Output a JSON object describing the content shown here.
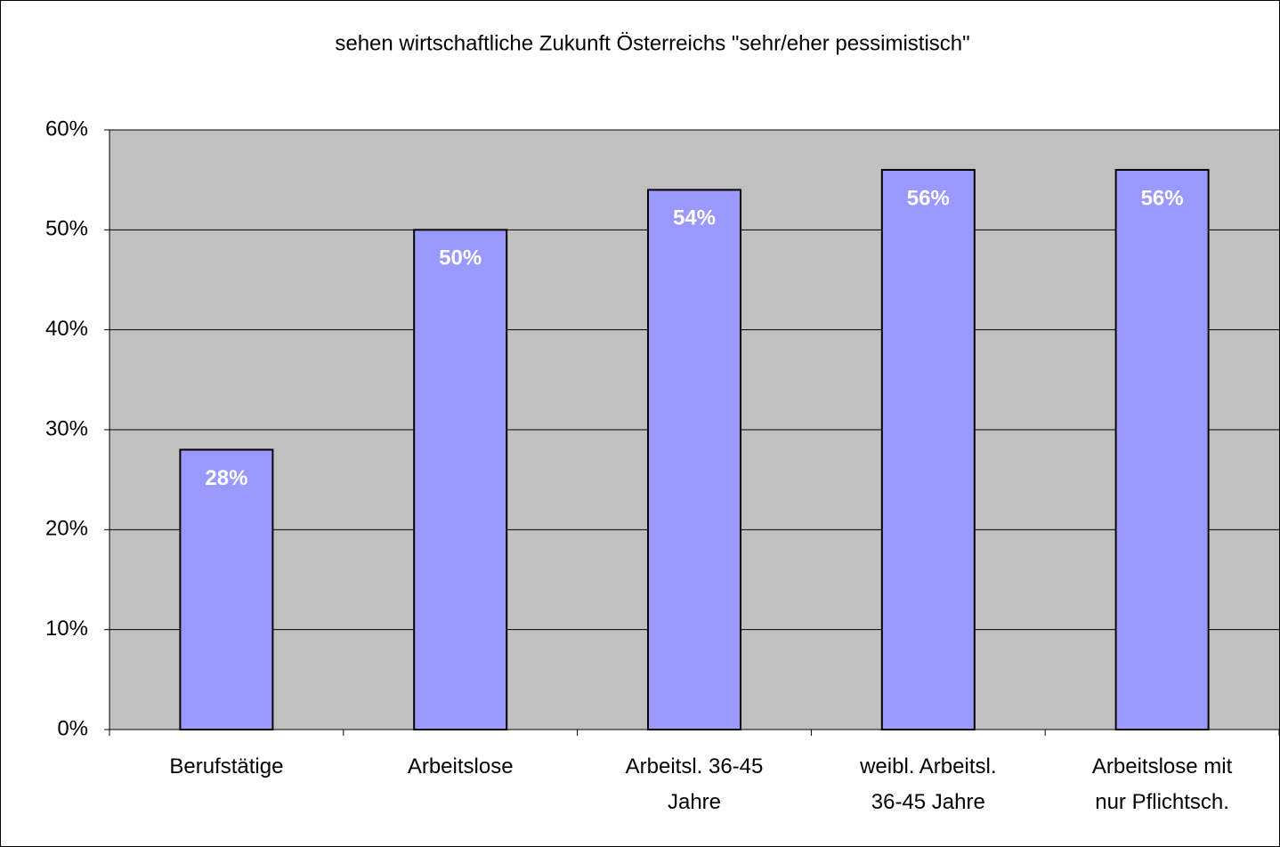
{
  "chart_data": {
    "type": "bar",
    "title": "sehen wirtschaftliche Zukunft Österreichs \"sehr/eher pessimistisch\"",
    "categories": [
      "Berufstätige",
      "Arbeitslose",
      "Arbeitsl. 36-45\nJahre",
      "weibl. Arbeitsl.\n36-45 Jahre",
      "Arbeitslose mit\nnur Pflichtsch."
    ],
    "values": [
      28,
      50,
      54,
      56,
      56
    ],
    "value_labels": [
      "28%",
      "50%",
      "54%",
      "56%",
      "56%"
    ],
    "color": "#9999ff",
    "ylim": [
      0,
      60
    ],
    "yticks": [
      {
        "value": 0,
        "label": "0%"
      },
      {
        "value": 10,
        "label": "10%"
      },
      {
        "value": 20,
        "label": "20%"
      },
      {
        "value": 30,
        "label": "30%"
      },
      {
        "value": 40,
        "label": "40%"
      },
      {
        "value": 50,
        "label": "50%"
      },
      {
        "value": 60,
        "label": "60%"
      }
    ],
    "grid": true
  }
}
